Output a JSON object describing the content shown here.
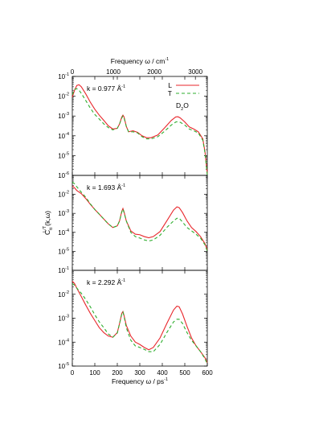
{
  "chart_data": [
    {
      "type": "line",
      "panel": "top",
      "annotation": "k = 0.977 Å",
      "annotation_sup": "-1",
      "legend": {
        "placement": "top-right",
        "entries": [
          {
            "label": "L",
            "color": "#e8262b",
            "style": "solid"
          },
          {
            "label": "T",
            "color": "#2eae2e",
            "style": "dashed"
          }
        ],
        "extra_label": "D",
        "extra_sub": "2",
        "extra_tail": "O"
      },
      "top_axis": {
        "label": "Frequency ω / cm",
        "label_sup": "-1",
        "ticks": [
          0,
          1000,
          2000,
          3000
        ],
        "tick_labels": [
          "0",
          "1000",
          "2000",
          "3000"
        ]
      },
      "yscale": "log",
      "ylim_exp": [
        -6,
        -1
      ],
      "ytick_labels": [
        {
          "e": -1,
          "base": "10",
          "exp": "-1"
        },
        {
          "e": -2,
          "base": "10",
          "exp": "-2"
        },
        {
          "e": -3,
          "base": "10",
          "exp": "-3"
        },
        {
          "e": -4,
          "base": "10",
          "exp": "-4"
        },
        {
          "e": -5,
          "base": "10",
          "exp": "-5"
        },
        {
          "e": -6,
          "base": "10",
          "exp": "-6"
        }
      ],
      "xlim": [
        0,
        600
      ],
      "series": [
        {
          "name": "L",
          "color": "#e8262b",
          "dash": "",
          "points": [
            [
              0,
              0.009
            ],
            [
              10,
              0.02
            ],
            [
              20,
              0.035
            ],
            [
              30,
              0.038
            ],
            [
              40,
              0.03
            ],
            [
              60,
              0.013
            ],
            [
              80,
              0.005
            ],
            [
              100,
              0.0022
            ],
            [
              120,
              0.0011
            ],
            [
              140,
              0.0006
            ],
            [
              160,
              0.00032
            ],
            [
              180,
              0.00022
            ],
            [
              200,
              0.00024
            ],
            [
              210,
              0.0004
            ],
            [
              220,
              0.0009
            ],
            [
              225,
              0.0011
            ],
            [
              230,
              0.0009
            ],
            [
              240,
              0.0003
            ],
            [
              250,
              0.00016
            ],
            [
              270,
              0.00018
            ],
            [
              290,
              0.00015
            ],
            [
              310,
              0.0001
            ],
            [
              330,
              8e-05
            ],
            [
              350,
              8e-05
            ],
            [
              380,
              0.00011
            ],
            [
              410,
              0.00025
            ],
            [
              440,
              0.0006
            ],
            [
              460,
              0.0009
            ],
            [
              470,
              0.00092
            ],
            [
              480,
              0.0008
            ],
            [
              500,
              0.0005
            ],
            [
              520,
              0.00028
            ],
            [
              540,
              0.00022
            ],
            [
              560,
              0.00016
            ],
            [
              580,
              7e-05
            ],
            [
              590,
              1.5e-05
            ],
            [
              600,
              1.2e-06
            ]
          ]
        },
        {
          "name": "T",
          "color": "#2eae2e",
          "dash": "4,3",
          "points": [
            [
              0,
              0.012
            ],
            [
              10,
              0.022
            ],
            [
              20,
              0.024
            ],
            [
              30,
              0.02
            ],
            [
              40,
              0.014
            ],
            [
              60,
              0.006
            ],
            [
              80,
              0.0025
            ],
            [
              100,
              0.0012
            ],
            [
              120,
              0.0007
            ],
            [
              140,
              0.0004
            ],
            [
              160,
              0.00026
            ],
            [
              180,
              0.0002
            ],
            [
              200,
              0.00024
            ],
            [
              210,
              0.0004
            ],
            [
              220,
              0.0008
            ],
            [
              225,
              0.001
            ],
            [
              230,
              0.0008
            ],
            [
              240,
              0.0003
            ],
            [
              250,
              0.00016
            ],
            [
              270,
              0.00016
            ],
            [
              290,
              0.00014
            ],
            [
              310,
              9e-05
            ],
            [
              330,
              7e-05
            ],
            [
              350,
              7e-05
            ],
            [
              380,
              9e-05
            ],
            [
              410,
              0.00017
            ],
            [
              440,
              0.00035
            ],
            [
              460,
              0.0005
            ],
            [
              470,
              0.00052
            ],
            [
              480,
              0.00048
            ],
            [
              500,
              0.00035
            ],
            [
              520,
              0.00022
            ],
            [
              540,
              0.00018
            ],
            [
              560,
              0.00014
            ],
            [
              580,
              6e-05
            ],
            [
              590,
              1.3e-05
            ],
            [
              600,
              1e-06
            ]
          ]
        }
      ]
    },
    {
      "type": "line",
      "panel": "middle",
      "annotation": "k = 1.693 Å",
      "annotation_sup": "-1",
      "ylabel": "C",
      "ylabel_sub": "tt",
      "ylabel_sup": "L/T",
      "ylabel_tail": "(k,ω)",
      "yscale": "log",
      "ylim_exp": [
        -6,
        -1
      ],
      "ytick_labels": [
        {
          "e": -2,
          "base": "10",
          "exp": "-2"
        },
        {
          "e": -3,
          "base": "10",
          "exp": "-3"
        },
        {
          "e": -4,
          "base": "10",
          "exp": "-4"
        },
        {
          "e": -5,
          "base": "10",
          "exp": "-5"
        }
      ],
      "xlim": [
        0,
        600
      ],
      "series": [
        {
          "name": "L",
          "color": "#e8262b",
          "dash": "",
          "points": [
            [
              0,
              0.028
            ],
            [
              10,
              0.022
            ],
            [
              20,
              0.016
            ],
            [
              40,
              0.011
            ],
            [
              60,
              0.006
            ],
            [
              80,
              0.003
            ],
            [
              100,
              0.0016
            ],
            [
              120,
              0.0009
            ],
            [
              140,
              0.0005
            ],
            [
              160,
              0.00028
            ],
            [
              180,
              0.00018
            ],
            [
              200,
              0.00022
            ],
            [
              210,
              0.0004
            ],
            [
              220,
              0.0013
            ],
            [
              225,
              0.0018
            ],
            [
              230,
              0.0012
            ],
            [
              240,
              0.0004
            ],
            [
              260,
              0.00012
            ],
            [
              280,
              8e-05
            ],
            [
              300,
              7.5e-05
            ],
            [
              320,
              6e-05
            ],
            [
              340,
              5.2e-05
            ],
            [
              360,
              6e-05
            ],
            [
              390,
              0.00011
            ],
            [
              420,
              0.0004
            ],
            [
              450,
              0.0015
            ],
            [
              465,
              0.0022
            ],
            [
              475,
              0.002
            ],
            [
              490,
              0.0011
            ],
            [
              510,
              0.0004
            ],
            [
              530,
              0.00018
            ],
            [
              550,
              0.00011
            ],
            [
              570,
              6e-05
            ],
            [
              590,
              2.5e-05
            ],
            [
              600,
              1.2e-05
            ]
          ]
        },
        {
          "name": "T",
          "color": "#2eae2e",
          "dash": "4,3",
          "points": [
            [
              0,
              0.045
            ],
            [
              10,
              0.036
            ],
            [
              20,
              0.025
            ],
            [
              40,
              0.013
            ],
            [
              60,
              0.007
            ],
            [
              80,
              0.0032
            ],
            [
              100,
              0.0016
            ],
            [
              120,
              0.0009
            ],
            [
              140,
              0.0005
            ],
            [
              160,
              0.00028
            ],
            [
              180,
              0.00018
            ],
            [
              200,
              0.00022
            ],
            [
              210,
              0.0004
            ],
            [
              220,
              0.0012
            ],
            [
              225,
              0.0017
            ],
            [
              230,
              0.0011
            ],
            [
              240,
              0.0004
            ],
            [
              260,
              0.0001
            ],
            [
              280,
              6e-05
            ],
            [
              300,
              5e-05
            ],
            [
              320,
              4e-05
            ],
            [
              340,
              3.5e-05
            ],
            [
              360,
              4e-05
            ],
            [
              390,
              7e-05
            ],
            [
              420,
              0.00018
            ],
            [
              450,
              0.0004
            ],
            [
              465,
              0.00055
            ],
            [
              475,
              0.00055
            ],
            [
              490,
              0.00035
            ],
            [
              510,
              0.00018
            ],
            [
              530,
              0.00012
            ],
            [
              550,
              8e-05
            ],
            [
              570,
              5e-05
            ],
            [
              590,
              2.2e-05
            ],
            [
              600,
              1e-05
            ]
          ]
        }
      ]
    },
    {
      "type": "line",
      "panel": "bottom",
      "annotation": "k = 2.292 Å",
      "annotation_sup": "-1",
      "bottom_axis": {
        "label": "Frequency ω / ps",
        "label_sup": "-1",
        "ticks": [
          0,
          100,
          200,
          300,
          400,
          500,
          600
        ],
        "tick_labels": [
          "0",
          "100",
          "200",
          "300",
          "400",
          "500",
          "600"
        ]
      },
      "yscale": "log",
      "ylim_exp": [
        -5,
        -1
      ],
      "ytick_labels": [
        {
          "e": -1,
          "base": "10",
          "exp": "-1"
        },
        {
          "e": -2,
          "base": "10",
          "exp": "-2"
        },
        {
          "e": -3,
          "base": "10",
          "exp": "-3"
        },
        {
          "e": -4,
          "base": "10",
          "exp": "-4"
        },
        {
          "e": -5,
          "base": "10",
          "exp": "-5"
        }
      ],
      "xlim": [
        0,
        600
      ],
      "series": [
        {
          "name": "L",
          "color": "#e8262b",
          "dash": "",
          "points": [
            [
              0,
              0.035
            ],
            [
              10,
              0.028
            ],
            [
              20,
              0.018
            ],
            [
              40,
              0.008
            ],
            [
              60,
              0.0035
            ],
            [
              80,
              0.0016
            ],
            [
              100,
              0.0008
            ],
            [
              120,
              0.0004
            ],
            [
              140,
              0.00025
            ],
            [
              160,
              0.00018
            ],
            [
              180,
              0.00016
            ],
            [
              200,
              0.00025
            ],
            [
              210,
              0.0006
            ],
            [
              220,
              0.0016
            ],
            [
              225,
              0.0019
            ],
            [
              230,
              0.0013
            ],
            [
              240,
              0.0005
            ],
            [
              260,
              0.00018
            ],
            [
              280,
              0.0001
            ],
            [
              300,
              8e-05
            ],
            [
              320,
              6e-05
            ],
            [
              340,
              4.8e-05
            ],
            [
              360,
              6e-05
            ],
            [
              390,
              0.00015
            ],
            [
              420,
              0.0006
            ],
            [
              450,
              0.0022
            ],
            [
              465,
              0.0032
            ],
            [
              475,
              0.003
            ],
            [
              490,
              0.0015
            ],
            [
              510,
              0.00045
            ],
            [
              530,
              0.00015
            ],
            [
              550,
              7e-05
            ],
            [
              570,
              4e-05
            ],
            [
              590,
              2.2e-05
            ],
            [
              600,
              1.4e-05
            ]
          ]
        },
        {
          "name": "T",
          "color": "#2eae2e",
          "dash": "4,3",
          "points": [
            [
              0,
              0.028
            ],
            [
              10,
              0.024
            ],
            [
              20,
              0.018
            ],
            [
              40,
              0.011
            ],
            [
              60,
              0.006
            ],
            [
              80,
              0.003
            ],
            [
              100,
              0.0014
            ],
            [
              120,
              0.0007
            ],
            [
              140,
              0.0004
            ],
            [
              160,
              0.00022
            ],
            [
              180,
              0.00016
            ],
            [
              200,
              0.00024
            ],
            [
              210,
              0.0006
            ],
            [
              220,
              0.0015
            ],
            [
              225,
              0.0018
            ],
            [
              230,
              0.0012
            ],
            [
              240,
              0.0004
            ],
            [
              260,
              0.00012
            ],
            [
              280,
              7e-05
            ],
            [
              300,
              6e-05
            ],
            [
              320,
              5e-05
            ],
            [
              340,
              4e-05
            ],
            [
              360,
              4e-05
            ],
            [
              390,
              8e-05
            ],
            [
              420,
              0.00025
            ],
            [
              450,
              0.0007
            ],
            [
              465,
              0.0009
            ],
            [
              475,
              0.0009
            ],
            [
              490,
              0.0006
            ],
            [
              510,
              0.00025
            ],
            [
              530,
              0.00012
            ],
            [
              550,
              7e-05
            ],
            [
              570,
              4e-05
            ],
            [
              590,
              2e-05
            ],
            [
              600,
              1.2e-05
            ]
          ]
        }
      ]
    }
  ]
}
